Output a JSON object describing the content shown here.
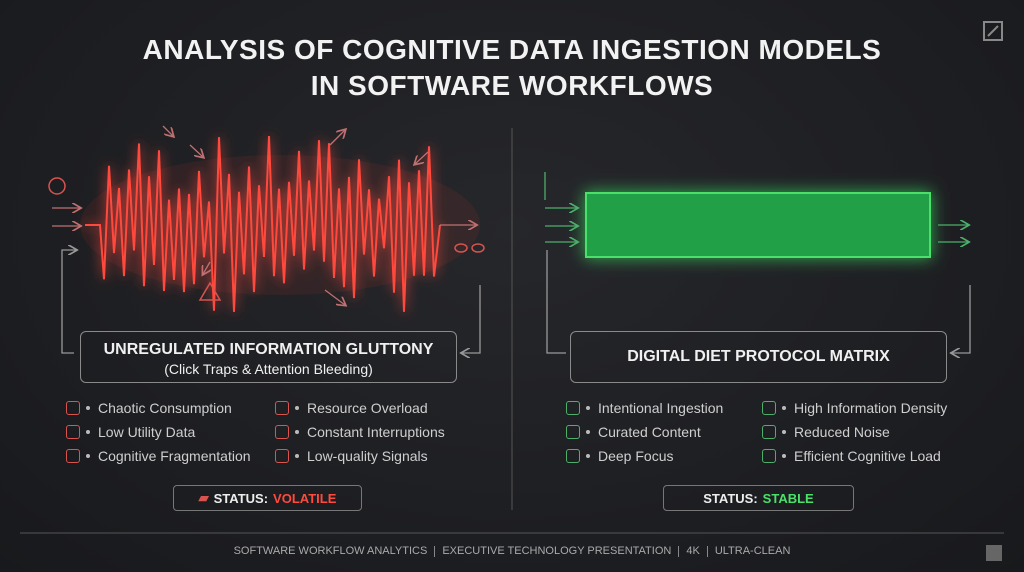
{
  "title": {
    "lines": [
      "ANALYSIS OF COGNITIVE DATA INGESTION MODELS",
      "IN SOFTWARE WORKFLOWS"
    ]
  },
  "left": {
    "label": {
      "title": "UNREGULATED INFORMATION GLUTTONY",
      "subtitle": "(Click Traps & Attention Bleeding)"
    },
    "items": [
      "Chaotic Consumption",
      "Low Utility Data",
      "Cognitive Fragmentation",
      "Resource Overload",
      "Constant Interruptions",
      "Low-quality Signals"
    ],
    "status": {
      "label": "STATUS:",
      "value": "VOLATILE"
    }
  },
  "right": {
    "label": {
      "title": "DIGITAL DIET PROTOCOL MATRIX"
    },
    "items": [
      "Intentional Ingestion",
      "Curated Content",
      "Deep Focus",
      "High Information Density",
      "Reduced Noise",
      "Efficient Cognitive Load"
    ],
    "status": {
      "label": "STATUS:",
      "value": "STABLE"
    }
  },
  "footer": {
    "items": [
      "SOFTWARE WORKFLOW ANALYTICS",
      "EXECUTIVE TECHNOLOGY PRESENTATION",
      "4K",
      "ULTRA-CLEAN"
    ]
  }
}
